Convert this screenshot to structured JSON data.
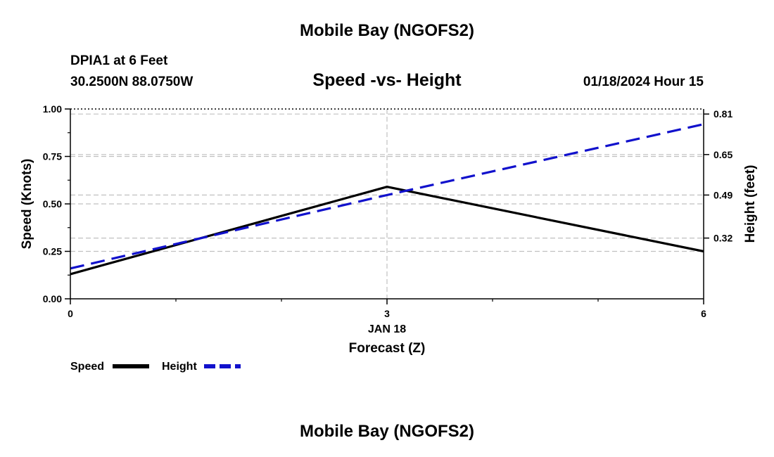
{
  "header": {
    "title": "Mobile Bay (NGOFS2)",
    "station": "DPIA1 at 6 Feet",
    "coords": "30.2500N  88.0750W",
    "subtitle": "Speed -vs- Height",
    "datetime": "01/18/2024 Hour 15",
    "footer_title": "Mobile Bay (NGOFS2)"
  },
  "chart_data": {
    "type": "line",
    "title": "Speed -vs- Height",
    "x": [
      0,
      3,
      6
    ],
    "x_ticks": [
      0,
      3,
      6
    ],
    "x_tick_labels": [
      "0",
      "3",
      "6"
    ],
    "x_date_label": "JAN 18",
    "xlabel": "Forecast (Z)",
    "xlim": [
      0,
      6
    ],
    "ylabel_left": "Speed (Knots)",
    "ylim_left": [
      0,
      1
    ],
    "y_ticks_left": [
      0,
      0.25,
      0.5,
      0.75,
      1.0
    ],
    "y_tick_labels_left": [
      "0.00",
      "0.25",
      "0.50",
      "0.75",
      "1.00"
    ],
    "ylabel_right": "Height (feet)",
    "ylim_right": [
      0.08,
      0.83
    ],
    "y_ticks_right": [
      0.32,
      0.49,
      0.65,
      0.81
    ],
    "y_tick_labels_right": [
      "0.32",
      "0.49",
      "0.65",
      "0.81"
    ],
    "grid": true,
    "legend_position": "bottom-left",
    "series": [
      {
        "name": "Speed",
        "axis": "left",
        "values": [
          0.13,
          0.59,
          0.25
        ],
        "color": "#000000",
        "style": "solid"
      },
      {
        "name": "Height",
        "axis": "right",
        "values": [
          0.2,
          0.49,
          0.77
        ],
        "color": "#1111cc",
        "style": "dashed"
      }
    ]
  }
}
